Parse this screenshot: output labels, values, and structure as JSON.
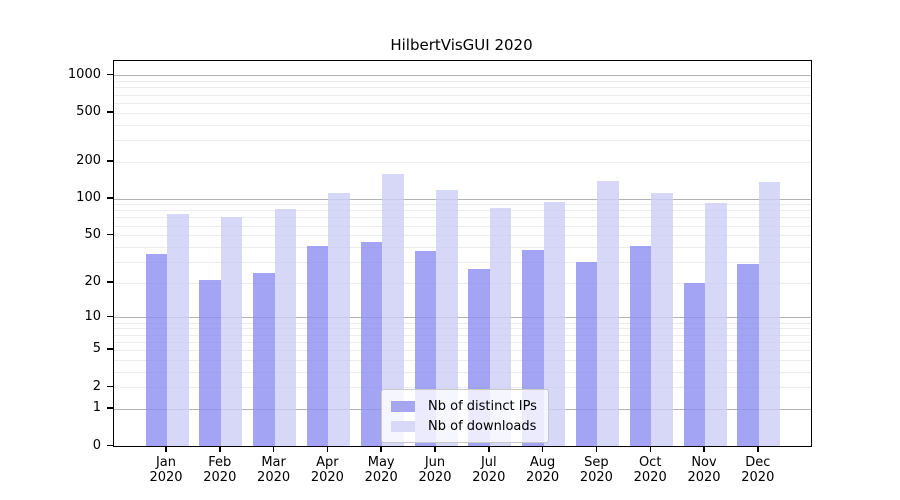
{
  "title": "HilbertVisGUI 2020",
  "chart_data": {
    "type": "bar",
    "title": "HilbertVisGUI 2020",
    "categories": [
      "Jan",
      "Feb",
      "Mar",
      "Apr",
      "May",
      "Jun",
      "Jul",
      "Aug",
      "Sep",
      "Oct",
      "Nov",
      "Dec"
    ],
    "category_year": "2020",
    "series": [
      {
        "name": "Nb of distinct IPs",
        "color": "#a6a6f0",
        "bar_rgba": "rgba(141,141,242,0.8)",
        "values": [
          35,
          21,
          24,
          41,
          44,
          37,
          26,
          38,
          30,
          41,
          20,
          29
        ]
      },
      {
        "name": "Nb of downloads",
        "color": "#d8d8f7",
        "bar_rgba": "rgba(205,205,246,0.8)",
        "values": [
          75,
          70,
          82,
          110,
          160,
          118,
          83,
          93,
          139,
          111,
          92,
          136
        ]
      }
    ],
    "xlabel": "",
    "ylabel": "",
    "y_ticks": [
      0,
      1,
      2,
      5,
      10,
      20,
      50,
      100,
      200,
      500,
      1000
    ],
    "ylim": [
      0,
      1000
    ],
    "scale": "log1p",
    "grid": true,
    "grid_minor_color": "#ececec",
    "grid_major_color": "#b3b3b3",
    "legend_position": "inside-bottom-center",
    "legend_entries": [
      "Nb of distinct IPs",
      "Nb of downloads"
    ]
  }
}
